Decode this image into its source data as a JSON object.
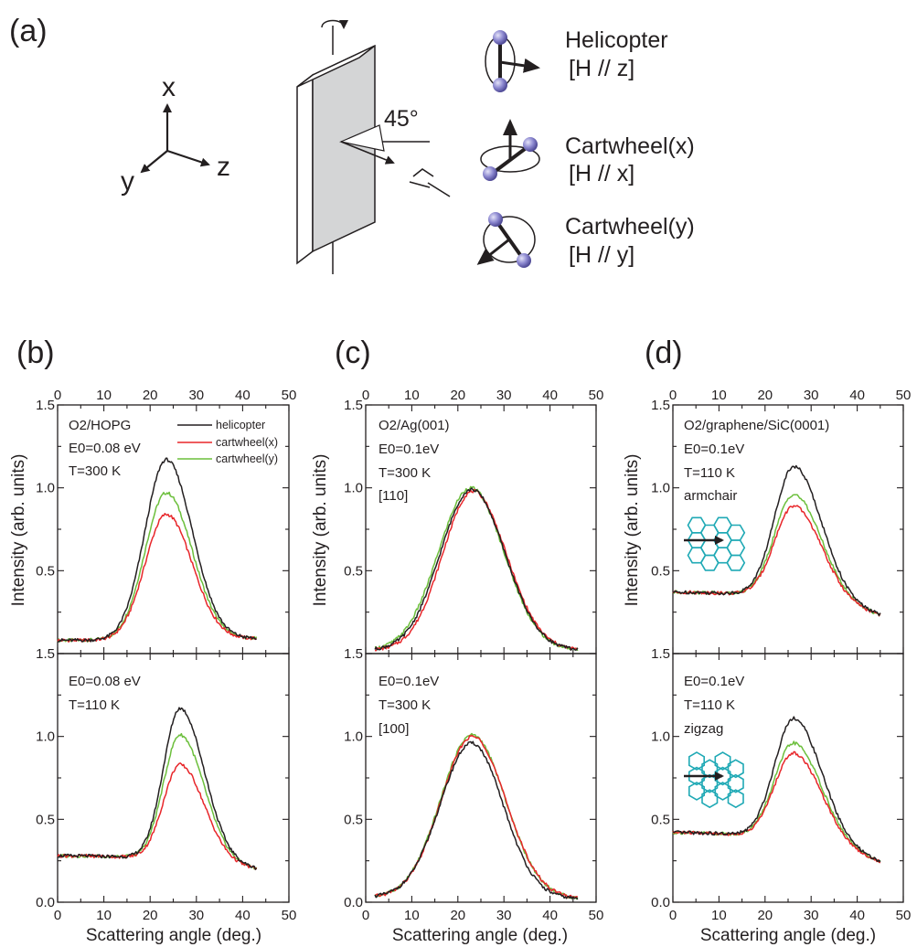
{
  "panel_labels": {
    "a": "(a)",
    "b": "(b)",
    "c": "(c)",
    "d": "(d)"
  },
  "schematic": {
    "axes": {
      "x": "x",
      "y": "y",
      "z": "z"
    },
    "angle_label": "45°",
    "modes": [
      {
        "name": "Helicopter",
        "field": "[H // z]",
        "icon": "helicopter-rotation-icon"
      },
      {
        "name": "Cartwheel(x)",
        "field": "[H // x]",
        "icon": "cartwheel-x-rotation-icon"
      },
      {
        "name": "Cartwheel(y)",
        "field": "[H // y]",
        "icon": "cartwheel-y-rotation-icon"
      }
    ]
  },
  "colors": {
    "helicopter": "#231f20",
    "cartwheel_x": "#e8262a",
    "cartwheel_y": "#6cbf3c",
    "lattice": "#1fa9b5"
  },
  "legend": [
    "helicopter",
    "cartwheel(x)",
    "cartwheel(y)"
  ],
  "axis_titles": {
    "x": "Scattering angle (deg.)",
    "y": "Intensity (arb. units)"
  },
  "x_ticks": [
    "0",
    "10",
    "20",
    "30",
    "40",
    "50"
  ],
  "y_ticks": [
    "0.0",
    "0.5",
    "1.0",
    "1.5"
  ],
  "chart_data": [
    {
      "panel": "b",
      "position": "top",
      "type": "line",
      "annotations": [
        "O2/HOPG",
        "E0=0.08 eV",
        "T=300 K"
      ],
      "xlim": [
        0,
        50
      ],
      "ylim": [
        0,
        1.5
      ],
      "series": [
        {
          "name": "helicopter",
          "peak_x": 23.5,
          "peak": 1.17,
          "base_left": 0.08,
          "base_right": 0.09,
          "width_left": 4.6,
          "width_right": 5.6,
          "x": [
            0,
            43
          ]
        },
        {
          "name": "cartwheel(x)",
          "peak_x": 23.5,
          "peak": 0.84,
          "base_left": 0.08,
          "base_right": 0.09,
          "width_left": 4.6,
          "width_right": 5.6,
          "x": [
            0,
            43
          ]
        },
        {
          "name": "cartwheel(y)",
          "peak_x": 23.5,
          "peak": 0.97,
          "base_left": 0.08,
          "base_right": 0.09,
          "width_left": 4.6,
          "width_right": 5.6,
          "x": [
            0,
            43
          ]
        }
      ]
    },
    {
      "panel": "b",
      "position": "bottom",
      "type": "line",
      "annotations": [
        "E0=0.08 eV",
        "T=110 K"
      ],
      "xlim": [
        0,
        50
      ],
      "ylim": [
        0,
        1.5
      ],
      "series": [
        {
          "name": "helicopter",
          "peak_x": 26.5,
          "peak": 1.17,
          "base_left": 0.28,
          "base_right": 0.2,
          "width_left": 3.6,
          "width_right": 5.2,
          "x": [
            0,
            43
          ]
        },
        {
          "name": "cartwheel(x)",
          "peak_x": 26.5,
          "peak": 0.83,
          "base_left": 0.28,
          "base_right": 0.2,
          "width_left": 3.6,
          "width_right": 5.2,
          "x": [
            0,
            43
          ]
        },
        {
          "name": "cartwheel(y)",
          "peak_x": 26.5,
          "peak": 1.01,
          "base_left": 0.28,
          "base_right": 0.2,
          "width_left": 3.6,
          "width_right": 5.2,
          "x": [
            0,
            43
          ]
        }
      ]
    },
    {
      "panel": "c",
      "position": "top",
      "type": "line",
      "annotations": [
        "O2/Ag(001)",
        "E0=0.1eV",
        "T=300 K",
        "[110]"
      ],
      "xlim": [
        0,
        50
      ],
      "ylim": [
        0,
        1.5
      ],
      "series": [
        {
          "name": "helicopter",
          "peak_x": 23.0,
          "peak": 0.99,
          "base_left": 0.02,
          "base_right": 0.02,
          "width_left": 6.8,
          "width_right": 7.2,
          "x": [
            2,
            46
          ]
        },
        {
          "name": "cartwheel(x)",
          "peak_x": 23.3,
          "peak": 0.98,
          "base_left": 0.02,
          "base_right": 0.02,
          "width_left": 6.6,
          "width_right": 7.2,
          "x": [
            2,
            46
          ]
        },
        {
          "name": "cartwheel(y)",
          "peak_x": 22.8,
          "peak": 1.0,
          "base_left": 0.02,
          "base_right": 0.02,
          "width_left": 7.0,
          "width_right": 7.2,
          "x": [
            2,
            46
          ]
        }
      ]
    },
    {
      "panel": "c",
      "position": "bottom",
      "type": "line",
      "annotations": [
        "E0=0.1eV",
        "T=300 K",
        "[100]"
      ],
      "xlim": [
        0,
        50
      ],
      "ylim": [
        0,
        1.5
      ],
      "series": [
        {
          "name": "helicopter",
          "peak_x": 23.0,
          "peak": 0.96,
          "base_left": 0.03,
          "base_right": 0.02,
          "width_left": 6.8,
          "width_right": 6.8,
          "x": [
            2,
            46
          ]
        },
        {
          "name": "cartwheel(x)",
          "peak_x": 23.2,
          "peak": 1.0,
          "base_left": 0.03,
          "base_right": 0.02,
          "width_left": 6.8,
          "width_right": 7.2,
          "x": [
            2,
            46
          ]
        },
        {
          "name": "cartwheel(y)",
          "peak_x": 23.1,
          "peak": 1.01,
          "base_left": 0.03,
          "base_right": 0.02,
          "width_left": 6.8,
          "width_right": 7.2,
          "x": [
            2,
            46
          ]
        }
      ]
    },
    {
      "panel": "d",
      "position": "top",
      "type": "line",
      "annotations": [
        "O2/graphene/SiC(0001)",
        "E0=0.1eV",
        "T=110 K",
        "armchair"
      ],
      "xlim": [
        0,
        50
      ],
      "ylim": [
        0,
        1.5
      ],
      "series": [
        {
          "name": "helicopter",
          "peak_x": 26.3,
          "peak": 1.13,
          "base_left": 0.37,
          "base_right": 0.23,
          "width_left": 4.2,
          "width_right": 6.0,
          "x": [
            0,
            45
          ]
        },
        {
          "name": "cartwheel(x)",
          "peak_x": 26.3,
          "peak": 0.89,
          "base_left": 0.37,
          "base_right": 0.23,
          "width_left": 4.2,
          "width_right": 6.0,
          "x": [
            0,
            45
          ]
        },
        {
          "name": "cartwheel(y)",
          "peak_x": 26.3,
          "peak": 0.96,
          "base_left": 0.37,
          "base_right": 0.23,
          "width_left": 4.2,
          "width_right": 6.0,
          "x": [
            0,
            45
          ]
        }
      ]
    },
    {
      "panel": "d",
      "position": "bottom",
      "type": "line",
      "annotations": [
        "E0=0.1eV",
        "T=110 K",
        "zigzag"
      ],
      "xlim": [
        0,
        50
      ],
      "ylim": [
        0,
        1.5
      ],
      "series": [
        {
          "name": "helicopter",
          "peak_x": 26.3,
          "peak": 1.11,
          "base_left": 0.42,
          "base_right": 0.24,
          "width_left": 4.2,
          "width_right": 6.0,
          "x": [
            0,
            45
          ]
        },
        {
          "name": "cartwheel(x)",
          "peak_x": 26.3,
          "peak": 0.9,
          "base_left": 0.42,
          "base_right": 0.24,
          "width_left": 4.2,
          "width_right": 6.0,
          "x": [
            0,
            45
          ]
        },
        {
          "name": "cartwheel(y)",
          "peak_x": 26.3,
          "peak": 0.96,
          "base_left": 0.42,
          "base_right": 0.24,
          "width_left": 4.2,
          "width_right": 6.0,
          "x": [
            0,
            45
          ]
        }
      ]
    }
  ]
}
